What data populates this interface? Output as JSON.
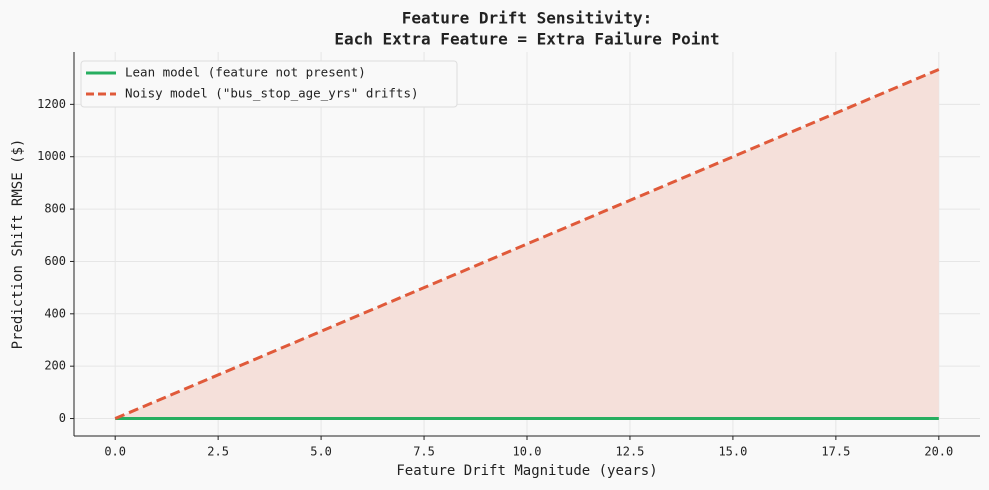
{
  "chart_data": {
    "type": "line",
    "title": [
      "Feature Drift Sensitivity:",
      "Each Extra Feature = Extra Failure Point"
    ],
    "x_label": "Feature Drift Magnitude (years)",
    "y_label": "Prediction Shift RMSE ($)",
    "x": [
      0,
      5,
      10,
      15,
      20
    ],
    "series": [
      {
        "name": "Lean model (feature not present)",
        "color": "#27ae60",
        "dash": false,
        "values": [
          0,
          0,
          0,
          0,
          0
        ]
      },
      {
        "name": "Noisy model (\"bus_stop_age_yrs\" drifts)",
        "color": "#e05a3a",
        "dash": true,
        "fill": "#f5e0da",
        "values": [
          0,
          333.3,
          666.7,
          1000,
          1333.3
        ]
      }
    ],
    "xlim": [
      -1,
      21
    ],
    "ylim": [
      -66.7,
      1400
    ],
    "xticks": [
      {
        "value": 0,
        "label": "0.0"
      },
      2.5,
      {
        "value": 5,
        "label": "5.0"
      },
      7.5,
      {
        "value": 10,
        "label": "10.0"
      },
      12.5,
      {
        "value": 15,
        "label": "15.0"
      },
      17.5,
      {
        "value": 20,
        "label": "20.0"
      }
    ],
    "yticks": [
      0,
      200,
      400,
      600,
      800,
      1000,
      1200
    ],
    "grid": true,
    "legend": "upper left"
  }
}
